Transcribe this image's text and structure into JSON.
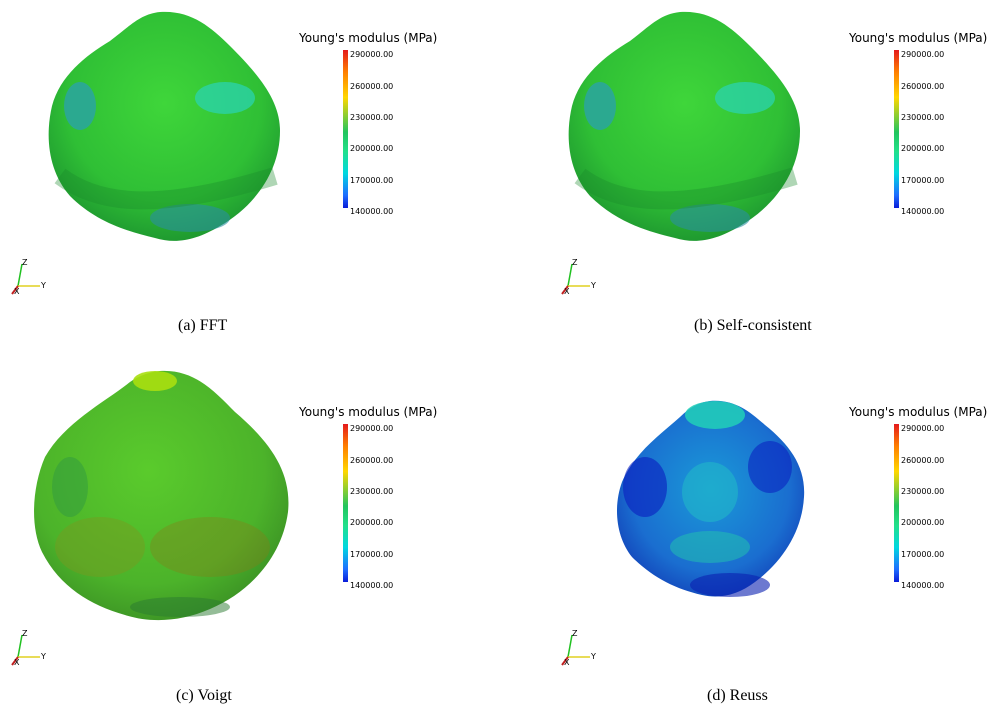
{
  "colorbar": {
    "title": "Young's modulus (MPa)",
    "ticks": [
      "290000.00",
      "260000.00",
      "230000.00",
      "200000.00",
      "170000.00",
      "140000.00"
    ]
  },
  "axes_labels": {
    "x": "X",
    "y": "Y",
    "z": "Z"
  },
  "panels": [
    {
      "caption": "(a)  FFT"
    },
    {
      "caption": "(b)  Self-consistent"
    },
    {
      "caption": "(c)  Voigt"
    },
    {
      "caption": "(d)  Reuss"
    }
  ],
  "colors": {
    "low": "#0a1cd8",
    "mid": "#22c55e",
    "high": "#e41a1c"
  }
}
